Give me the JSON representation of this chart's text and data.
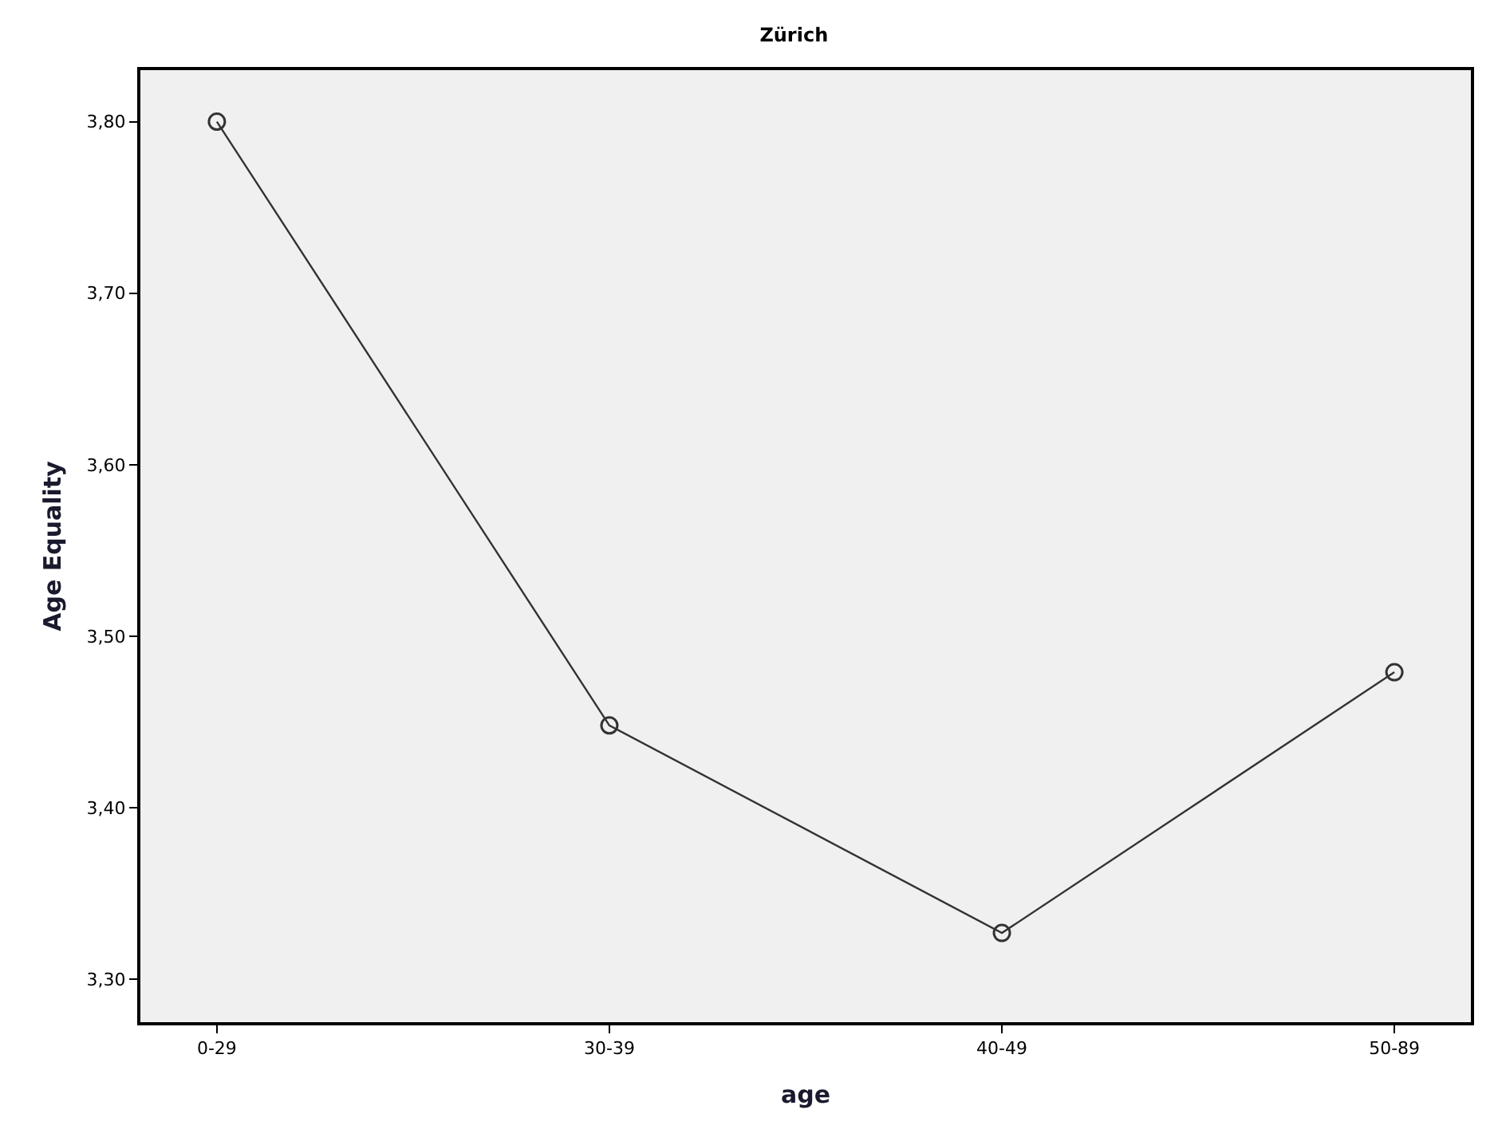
{
  "chart_data": {
    "type": "line",
    "title": "Zürich",
    "xlabel": "age",
    "ylabel": "Age Equality",
    "categories": [
      "0-29",
      "30-39",
      "40-49",
      "50-89"
    ],
    "series": [
      {
        "color": "#333333",
        "values": [
          3.8,
          3.448,
          3.327,
          3.479
        ]
      }
    ],
    "ylim": [
      3.275,
      3.83
    ],
    "yticks": [
      {
        "value": 3.3,
        "label": "3,30"
      },
      {
        "value": 3.4,
        "label": "3,40"
      },
      {
        "value": 3.5,
        "label": "3,50"
      },
      {
        "value": 3.6,
        "label": "3,60"
      },
      {
        "value": 3.7,
        "label": "3,70"
      },
      {
        "value": 3.8,
        "label": "3,80"
      }
    ],
    "grid": false,
    "marker": "circle",
    "line_style": "solid"
  }
}
